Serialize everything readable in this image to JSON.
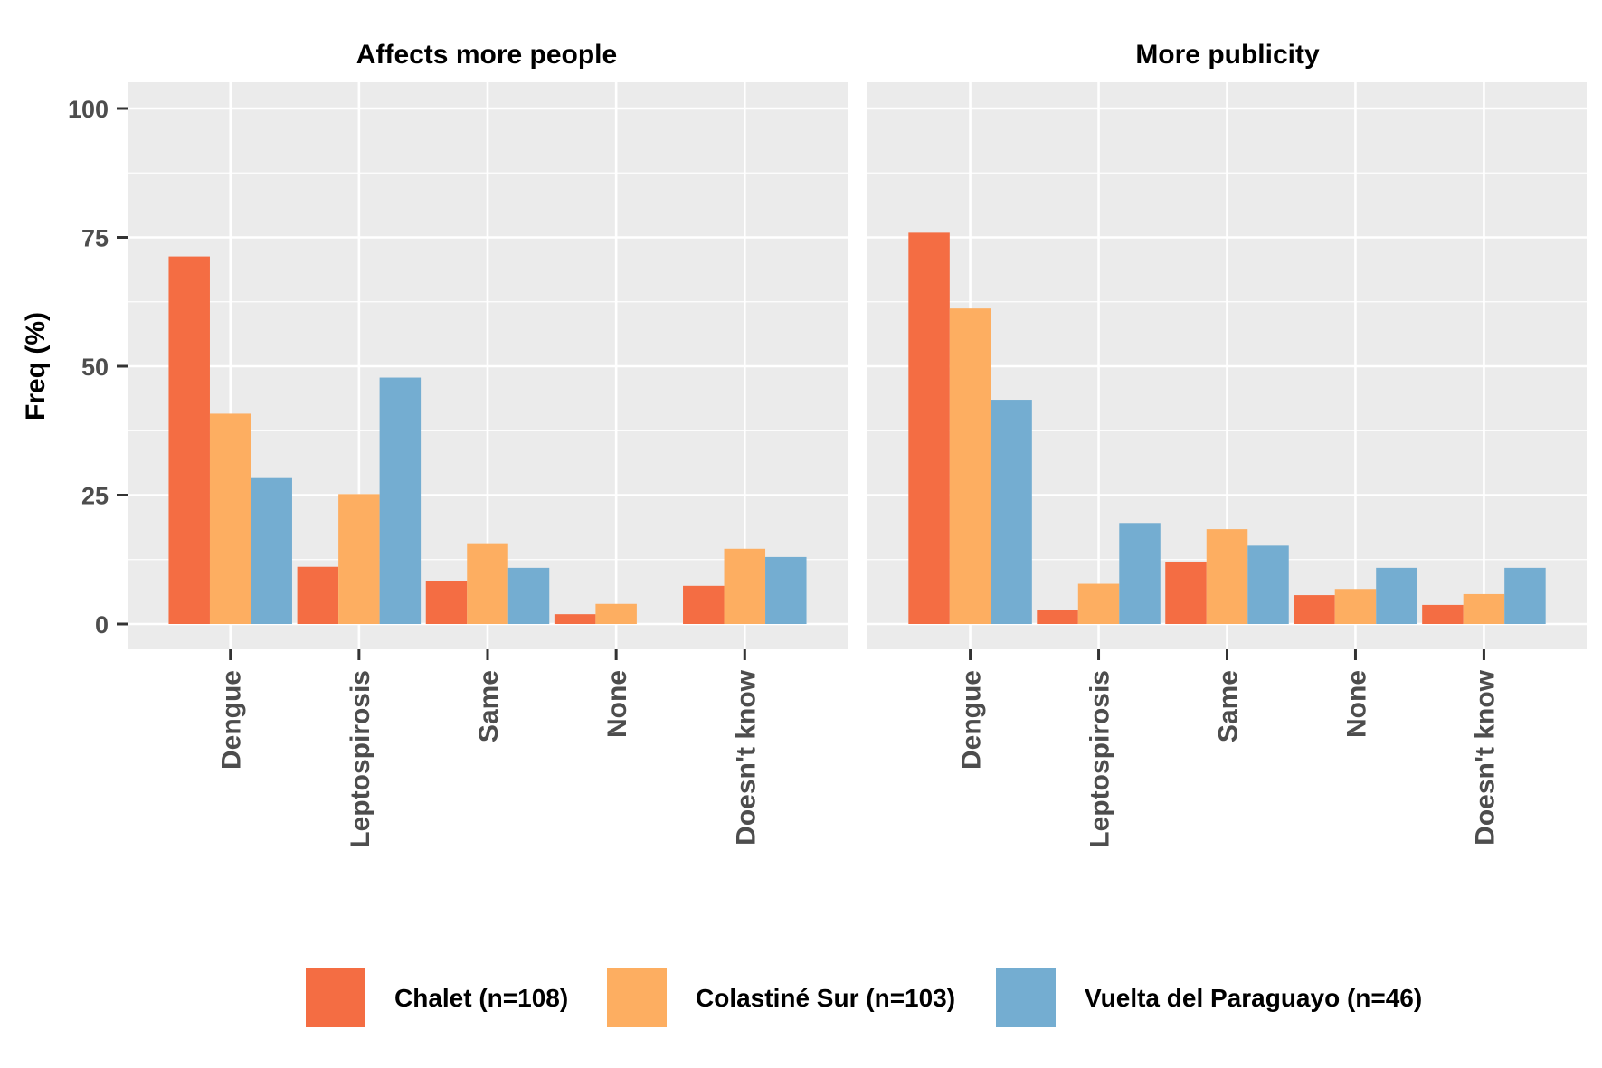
{
  "chart_data": {
    "type": "bar",
    "ylabel": "Freq (%)",
    "ylim": [
      0,
      100
    ],
    "yticks": [
      "0",
      "25",
      "50",
      "75",
      "100"
    ],
    "categories": [
      "Dengue",
      "Leptospirosis",
      "Same",
      "None",
      "Doesn't know"
    ],
    "series_names": [
      "Chalet (n=108)",
      "Colastiné Sur (n=103)",
      "Vuelta del Paraguayo (n=46)"
    ],
    "colors": [
      "#F46D43",
      "#FDAE61",
      "#74ADD1"
    ],
    "panel_background": "#EBEBEB",
    "grid": true,
    "legend_position": "bottom",
    "panels": [
      {
        "title": "Affects more people",
        "series": [
          {
            "name": "Chalet (n=108)",
            "values": [
              71.3,
              11.1,
              8.3,
              1.9,
              7.4
            ]
          },
          {
            "name": "Colastiné Sur (n=103)",
            "values": [
              40.8,
              25.2,
              15.5,
              3.9,
              14.6
            ]
          },
          {
            "name": "Vuelta del Paraguayo (n=46)",
            "values": [
              28.3,
              47.8,
              10.9,
              0,
              13.0
            ]
          }
        ]
      },
      {
        "title": "More publicity",
        "series": [
          {
            "name": "Chalet (n=108)",
            "values": [
              75.9,
              2.8,
              12.0,
              5.6,
              3.7
            ]
          },
          {
            "name": "Colastiné Sur (n=103)",
            "values": [
              61.2,
              7.8,
              18.4,
              6.8,
              5.8
            ]
          },
          {
            "name": "Vuelta del Paraguayo (n=46)",
            "values": [
              43.5,
              19.6,
              15.2,
              10.9,
              10.9
            ]
          }
        ]
      }
    ]
  }
}
